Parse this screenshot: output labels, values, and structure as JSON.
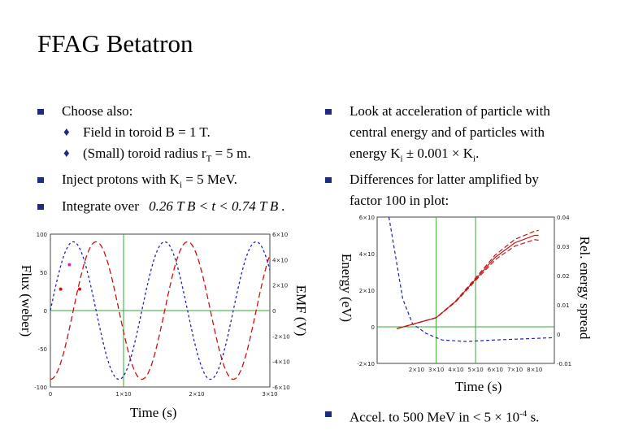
{
  "slide": {
    "title": "FFAG Betatron"
  },
  "left_bullets": {
    "b1": "Choose also:",
    "s1": "Field in toroid B = 1 T.",
    "s2_pre": "(Small) toroid radius r",
    "s2_sub": "T",
    "s2_post": " = 5 m.",
    "b2_pre": "Inject protons with K",
    "b2_sub": "i",
    "b2_post": " = 5 MeV.",
    "b3": "Integrate over",
    "b3_math": "0.26 T B < t < 0.74 T B ."
  },
  "right_bullets": {
    "b1_l1": "Look at acceleration of particle with",
    "b1_l2": "central energy and of particles with",
    "b1_l3_pre": "energy K",
    "b1_l3_sub": "i",
    "b1_l3_mid": " ± 0.001 × K",
    "b1_l3_sub2": "i",
    "b1_l3_post": ".",
    "b2_l1": "Differences for latter amplified by",
    "b2_l2": "factor 100 in plot:",
    "b3_pre": "Accel. to 500 MeV in < 5 × 10",
    "b3_sup": "-4",
    "b3_post": " s."
  },
  "left_chart_labels": {
    "ylabel_left": "Flux (weber)",
    "ylabel_right": "EMF (V)",
    "xlabel": "Time (s)"
  },
  "right_chart_labels": {
    "ylabel_left": "Energy (eV)",
    "ylabel_right": "Rel. energy spread",
    "xlabel": "Time (s)"
  },
  "chart_data": [
    {
      "type": "line",
      "xlabel": "Time (s)",
      "ylabel": "Flux (weber)",
      "y2label": "EMF (V)",
      "xlim": [
        0,
        3e-06
      ],
      "ylim": [
        -100,
        100
      ],
      "y2lim": [
        -600000,
        600000
      ],
      "x_ticks": [
        "0",
        "1×10",
        "2×10",
        "3×10"
      ],
      "x_tick_values": [
        0,
        1e-06,
        2e-06,
        3e-06
      ],
      "y_ticks": [
        "100",
        "50",
        "0",
        "-50",
        "-100"
      ],
      "y_tick_values": [
        100,
        50,
        0,
        -50,
        -100
      ],
      "y2_ticks": [
        "6×10",
        "4×10",
        "2×10",
        "0",
        "-2×10",
        "-4×10",
        "-6×10"
      ],
      "y2_tick_values": [
        600000,
        400000,
        200000,
        0,
        -200000,
        -400000,
        -600000
      ],
      "series": [
        {
          "color": "#d01010",
          "dash": "7,4",
          "amplitude": 90,
          "period": 1.25e-06,
          "phase_shift": 6.25e-07
        },
        {
          "color": "#2020c0",
          "dash": "3,3",
          "amplitude": 540000,
          "period": 1.25e-06,
          "phase_shift": 3.125e-07
        }
      ],
      "markers": [
        {
          "x": 1.4e-07,
          "y": 28,
          "color": "#d01010"
        },
        {
          "x": 4e-07,
          "y": 28,
          "color": "#d01010"
        },
        {
          "x": 2.6e-07,
          "y": 60,
          "color": "#c030c0"
        }
      ],
      "grid_x": [
        1e-06
      ],
      "grid_y": [
        0
      ]
    },
    {
      "type": "line",
      "xlabel": "Time (s)",
      "ylabel": "Energy (eV)",
      "y2label": "Rel. energy spread",
      "xlim": [
        0,
        0.0009
      ],
      "ylim": [
        -200000000.0,
        600000000.0
      ],
      "y2lim": [
        -0.01,
        0.04
      ],
      "x_ticks": [
        "2×10",
        "3×10",
        "4×10",
        "5×10",
        "6×10",
        "7×10",
        "8×10"
      ],
      "x_tick_values": [
        0.0002,
        0.0003,
        0.0004,
        0.0005,
        0.0006,
        0.0007,
        0.0008
      ],
      "y_ticks": [
        "6×10",
        "4×10",
        "2×10",
        "0",
        "-2×10"
      ],
      "y_tick_values": [
        600000000.0,
        400000000.0,
        200000000.0,
        0,
        -200000000.0
      ],
      "y2_ticks": [
        "0.04",
        "0.03",
        "0.02",
        "0.01",
        "0",
        "-0.01"
      ],
      "y2_tick_values": [
        0.04,
        0.03,
        0.02,
        0.01,
        0,
        -0.01
      ],
      "energy_x": [
        0.0001,
        0.0002,
        0.0003,
        0.0004,
        0.0005,
        0.0006,
        0.0007,
        0.0008,
        0.00082
      ],
      "energy_y": [
        -10000000.0,
        20000000.0,
        50000000.0,
        140000000.0,
        260000000.0,
        380000000.0,
        460000000.0,
        500000000.0,
        500000000.0
      ],
      "spread_x": [
        6e-05,
        9e-05,
        0.00013,
        0.00018,
        0.00025,
        0.00033,
        0.00045,
        0.0006,
        0.00075,
        0.0009
      ],
      "spread_y": [
        0.04,
        0.028,
        0.012,
        0.0035,
        0.0002,
        -0.002,
        -0.0025,
        -0.002,
        -0.0016,
        -0.0012
      ],
      "grid_x": [
        0.0003,
        0.0005
      ],
      "grid_y": [
        0
      ]
    }
  ]
}
